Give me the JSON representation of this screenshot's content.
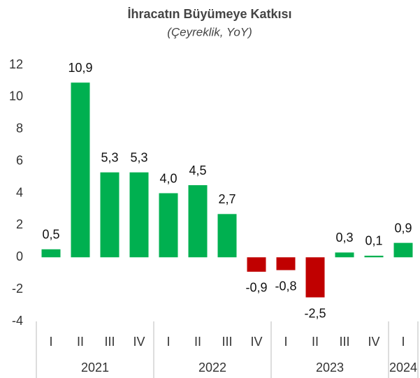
{
  "chart_data": {
    "type": "bar",
    "title": "İhracatın Büyümeye Katkısı",
    "subtitle": "(Çeyreklik, YoY)",
    "groups": [
      {
        "label": "2021",
        "categories": [
          "I",
          "II",
          "III",
          "IV"
        ]
      },
      {
        "label": "2022",
        "categories": [
          "I",
          "II",
          "III",
          "IV"
        ]
      },
      {
        "label": "2023",
        "categories": [
          "I",
          "II",
          "III",
          "IV"
        ]
      },
      {
        "label": "2024",
        "categories": [
          "I"
        ]
      }
    ],
    "values": [
      0.5,
      10.9,
      5.3,
      5.3,
      4.0,
      4.5,
      2.7,
      -0.9,
      -0.8,
      -2.5,
      0.3,
      0.1,
      0.9
    ],
    "value_labels": [
      "0,5",
      "10,9",
      "5,3",
      "5,3",
      "4,0",
      "4,5",
      "2,7",
      "-0,9",
      "-0,8",
      "-2,5",
      "0,3",
      "0,1",
      "0,9"
    ],
    "colors": [
      "#00b050",
      "#00b050",
      "#00b050",
      "#00b050",
      "#00b050",
      "#00b050",
      "#00b050",
      "#c00000",
      "#c00000",
      "#c00000",
      "#00b050",
      "#00b050",
      "#00b050"
    ],
    "ylim": [
      -4,
      12
    ],
    "yticks": [
      -4,
      -2,
      0,
      2,
      4,
      6,
      8,
      10,
      12
    ],
    "grid": false
  }
}
